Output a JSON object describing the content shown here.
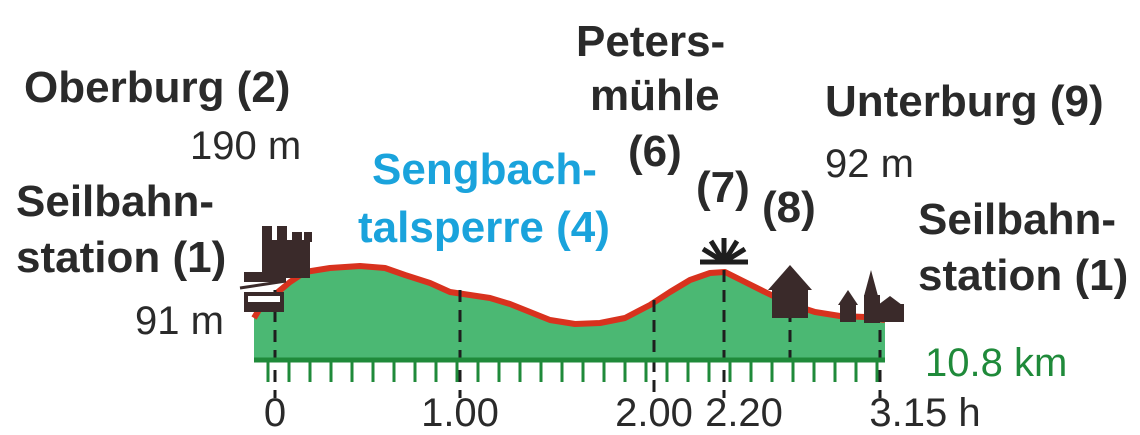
{
  "points": {
    "start": {
      "name_line1": "Seilbahn-",
      "name_line2": "station (1)",
      "elevation": "91 m"
    },
    "oberburg": {
      "name": "Oberburg (2)",
      "elevation": "190 m"
    },
    "sengbach": {
      "name_line1": "Sengbach-",
      "name_line2": "talsperre (4)"
    },
    "petersmuehle": {
      "name_line1": "Peters-",
      "name_line2": "mühle",
      "number": "(6)"
    },
    "p7": {
      "number": "(7)"
    },
    "p8": {
      "number": "(8)"
    },
    "unterburg": {
      "name": "Unterburg (9)",
      "elevation": "92 m"
    },
    "end": {
      "name_line1": "Seilbahn-",
      "name_line2": "station (1)"
    }
  },
  "distance": "10.8 km",
  "time_ticks": [
    "0",
    "1.00",
    "2.00",
    "2.20",
    "3.15 h"
  ],
  "colors": {
    "terrain": "#4bb873",
    "route": "#d8321e",
    "label_highlight": "#1aa3dc",
    "distance": "#1f8a3a",
    "text": "#2a2a2a"
  },
  "icons": [
    "castle-icon",
    "cable-car-icon",
    "viewpoint-icon",
    "house-icon",
    "church-icon"
  ]
}
